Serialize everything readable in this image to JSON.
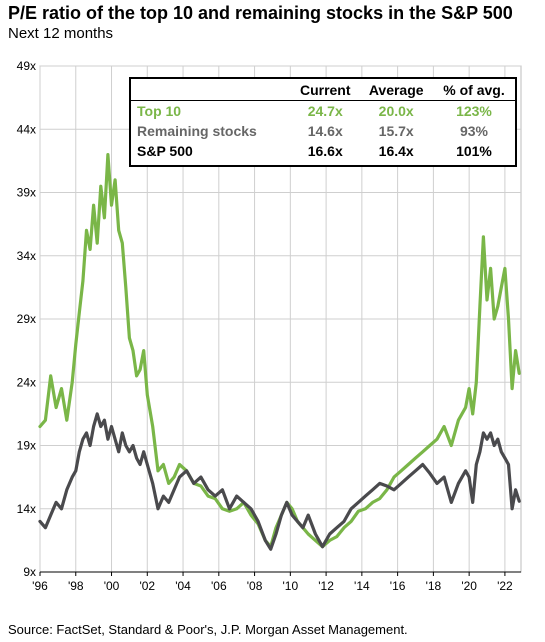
{
  "header": {
    "title": "P/E ratio of the top 10 and remaining stocks in the S&P 500",
    "subtitle": "Next 12 months"
  },
  "source": "Source: FactSet, Standard & Poor's, J.P. Morgan Asset Management.",
  "summary_table": {
    "headers": [
      "",
      "Current",
      "Average",
      "% of avg."
    ],
    "rows": [
      {
        "label": "Top 10",
        "current": "24.7x",
        "average": "20.0x",
        "pct": "123%",
        "color": "#7ab648"
      },
      {
        "label": "Remaining stocks",
        "current": "14.6x",
        "average": "15.7x",
        "pct": "93%",
        "color": "#666666"
      },
      {
        "label": "S&P 500",
        "current": "16.6x",
        "average": "16.4x",
        "pct": "101%",
        "color": "#000000"
      }
    ]
  },
  "colors": {
    "top10": "#7ab648",
    "remaining": "#4a4a4d",
    "grid": "#cfcfcf"
  },
  "chart_data": {
    "type": "line",
    "title": "P/E ratio of the top 10 and remaining stocks in the S&P 500",
    "subtitle": "Next 12 months",
    "xlabel": "",
    "ylabel": "",
    "xlim": [
      1996,
      2022.9
    ],
    "ylim": [
      9,
      49
    ],
    "grid": true,
    "legend": "none",
    "x_ticks": [
      1996,
      1998,
      2000,
      2002,
      2004,
      2006,
      2008,
      2010,
      2012,
      2014,
      2016,
      2018,
      2020,
      2022
    ],
    "x_tick_labels": [
      "'96",
      "'98",
      "'00",
      "'02",
      "'04",
      "'06",
      "'08",
      "'10",
      "'12",
      "'14",
      "'16",
      "'18",
      "'20",
      "'22"
    ],
    "y_ticks": [
      9,
      14,
      19,
      24,
      29,
      34,
      39,
      44,
      49
    ],
    "y_tick_labels": [
      "9x",
      "14x",
      "19x",
      "24x",
      "29x",
      "34x",
      "39x",
      "44x",
      "49x"
    ],
    "series": [
      {
        "name": "Top 10",
        "color": "#7ab648",
        "points": [
          [
            1996.0,
            20.5
          ],
          [
            1996.3,
            21.0
          ],
          [
            1996.6,
            24.5
          ],
          [
            1996.9,
            22.0
          ],
          [
            1997.2,
            23.5
          ],
          [
            1997.5,
            21.0
          ],
          [
            1997.8,
            24.0
          ],
          [
            1998.0,
            27.0
          ],
          [
            1998.2,
            29.5
          ],
          [
            1998.4,
            32.0
          ],
          [
            1998.6,
            36.0
          ],
          [
            1998.8,
            34.5
          ],
          [
            1999.0,
            38.0
          ],
          [
            1999.2,
            35.0
          ],
          [
            1999.4,
            39.5
          ],
          [
            1999.6,
            37.0
          ],
          [
            1999.8,
            42.0
          ],
          [
            2000.0,
            38.0
          ],
          [
            2000.2,
            40.0
          ],
          [
            2000.4,
            36.0
          ],
          [
            2000.6,
            35.0
          ],
          [
            2000.8,
            31.5
          ],
          [
            2001.0,
            27.5
          ],
          [
            2001.2,
            26.5
          ],
          [
            2001.4,
            24.5
          ],
          [
            2001.6,
            25.0
          ],
          [
            2001.8,
            26.5
          ],
          [
            2002.0,
            23.0
          ],
          [
            2002.3,
            20.5
          ],
          [
            2002.6,
            17.0
          ],
          [
            2002.9,
            17.5
          ],
          [
            2003.2,
            16.0
          ],
          [
            2003.5,
            16.5
          ],
          [
            2003.8,
            17.5
          ],
          [
            2004.2,
            17.0
          ],
          [
            2004.6,
            16.0
          ],
          [
            2005.0,
            15.8
          ],
          [
            2005.4,
            15.0
          ],
          [
            2005.8,
            14.8
          ],
          [
            2006.2,
            14.0
          ],
          [
            2006.6,
            13.8
          ],
          [
            2007.0,
            14.0
          ],
          [
            2007.4,
            14.5
          ],
          [
            2007.8,
            13.5
          ],
          [
            2008.2,
            12.8
          ],
          [
            2008.6,
            11.5
          ],
          [
            2008.9,
            11.0
          ],
          [
            2009.2,
            12.5
          ],
          [
            2009.5,
            13.5
          ],
          [
            2009.8,
            14.5
          ],
          [
            2010.1,
            14.0
          ],
          [
            2010.4,
            13.0
          ],
          [
            2010.7,
            12.5
          ],
          [
            2011.0,
            12.0
          ],
          [
            2011.4,
            11.5
          ],
          [
            2011.8,
            11.0
          ],
          [
            2012.2,
            11.5
          ],
          [
            2012.6,
            11.8
          ],
          [
            2013.0,
            12.5
          ],
          [
            2013.4,
            13.0
          ],
          [
            2013.8,
            13.8
          ],
          [
            2014.2,
            14.0
          ],
          [
            2014.6,
            14.5
          ],
          [
            2015.0,
            14.8
          ],
          [
            2015.4,
            15.5
          ],
          [
            2015.8,
            16.5
          ],
          [
            2016.2,
            17.0
          ],
          [
            2016.6,
            17.5
          ],
          [
            2017.0,
            18.0
          ],
          [
            2017.4,
            18.5
          ],
          [
            2017.8,
            19.0
          ],
          [
            2018.2,
            19.5
          ],
          [
            2018.6,
            20.5
          ],
          [
            2019.0,
            19.0
          ],
          [
            2019.4,
            21.0
          ],
          [
            2019.8,
            22.0
          ],
          [
            2020.0,
            23.5
          ],
          [
            2020.2,
            21.5
          ],
          [
            2020.4,
            24.0
          ],
          [
            2020.6,
            30.0
          ],
          [
            2020.8,
            35.5
          ],
          [
            2021.0,
            30.5
          ],
          [
            2021.2,
            33.0
          ],
          [
            2021.4,
            29.0
          ],
          [
            2021.6,
            30.0
          ],
          [
            2021.8,
            31.5
          ],
          [
            2022.0,
            33.0
          ],
          [
            2022.2,
            29.0
          ],
          [
            2022.4,
            23.5
          ],
          [
            2022.6,
            26.5
          ],
          [
            2022.8,
            24.7
          ]
        ]
      },
      {
        "name": "Remaining stocks",
        "color": "#4a4a4d",
        "points": [
          [
            1996.0,
            13.0
          ],
          [
            1996.3,
            12.5
          ],
          [
            1996.6,
            13.5
          ],
          [
            1996.9,
            14.5
          ],
          [
            1997.2,
            14.0
          ],
          [
            1997.5,
            15.5
          ],
          [
            1997.8,
            16.5
          ],
          [
            1998.0,
            17.0
          ],
          [
            1998.2,
            18.5
          ],
          [
            1998.4,
            19.5
          ],
          [
            1998.6,
            20.0
          ],
          [
            1998.8,
            19.0
          ],
          [
            1999.0,
            20.5
          ],
          [
            1999.2,
            21.5
          ],
          [
            1999.4,
            20.5
          ],
          [
            1999.6,
            21.0
          ],
          [
            1999.8,
            19.5
          ],
          [
            2000.0,
            20.5
          ],
          [
            2000.2,
            19.5
          ],
          [
            2000.4,
            18.5
          ],
          [
            2000.6,
            20.0
          ],
          [
            2000.8,
            19.0
          ],
          [
            2001.0,
            18.5
          ],
          [
            2001.2,
            19.0
          ],
          [
            2001.4,
            18.0
          ],
          [
            2001.6,
            17.5
          ],
          [
            2001.8,
            18.5
          ],
          [
            2002.0,
            17.5
          ],
          [
            2002.3,
            16.0
          ],
          [
            2002.6,
            14.0
          ],
          [
            2002.9,
            15.0
          ],
          [
            2003.2,
            14.5
          ],
          [
            2003.5,
            15.5
          ],
          [
            2003.8,
            16.5
          ],
          [
            2004.2,
            17.0
          ],
          [
            2004.6,
            16.0
          ],
          [
            2005.0,
            16.5
          ],
          [
            2005.4,
            15.5
          ],
          [
            2005.8,
            15.0
          ],
          [
            2006.2,
            15.5
          ],
          [
            2006.6,
            14.0
          ],
          [
            2007.0,
            15.0
          ],
          [
            2007.4,
            14.5
          ],
          [
            2007.8,
            14.0
          ],
          [
            2008.2,
            13.0
          ],
          [
            2008.6,
            11.5
          ],
          [
            2008.9,
            10.8
          ],
          [
            2009.2,
            12.0
          ],
          [
            2009.5,
            13.5
          ],
          [
            2009.8,
            14.5
          ],
          [
            2010.1,
            13.5
          ],
          [
            2010.4,
            13.0
          ],
          [
            2010.7,
            12.5
          ],
          [
            2011.0,
            13.5
          ],
          [
            2011.4,
            12.0
          ],
          [
            2011.8,
            11.0
          ],
          [
            2012.2,
            12.0
          ],
          [
            2012.6,
            12.5
          ],
          [
            2013.0,
            13.0
          ],
          [
            2013.4,
            14.0
          ],
          [
            2013.8,
            14.5
          ],
          [
            2014.2,
            15.0
          ],
          [
            2014.6,
            15.5
          ],
          [
            2015.0,
            16.0
          ],
          [
            2015.4,
            15.8
          ],
          [
            2015.8,
            15.5
          ],
          [
            2016.2,
            16.0
          ],
          [
            2016.6,
            16.5
          ],
          [
            2017.0,
            17.0
          ],
          [
            2017.4,
            17.5
          ],
          [
            2017.8,
            16.8
          ],
          [
            2018.2,
            16.0
          ],
          [
            2018.6,
            16.5
          ],
          [
            2019.0,
            14.5
          ],
          [
            2019.4,
            16.0
          ],
          [
            2019.8,
            17.0
          ],
          [
            2020.0,
            16.5
          ],
          [
            2020.2,
            14.5
          ],
          [
            2020.4,
            17.5
          ],
          [
            2020.6,
            18.5
          ],
          [
            2020.8,
            20.0
          ],
          [
            2021.0,
            19.5
          ],
          [
            2021.2,
            20.0
          ],
          [
            2021.4,
            19.0
          ],
          [
            2021.6,
            19.5
          ],
          [
            2021.8,
            18.5
          ],
          [
            2022.0,
            18.0
          ],
          [
            2022.2,
            17.5
          ],
          [
            2022.4,
            14.0
          ],
          [
            2022.6,
            15.5
          ],
          [
            2022.8,
            14.6
          ]
        ]
      }
    ]
  }
}
